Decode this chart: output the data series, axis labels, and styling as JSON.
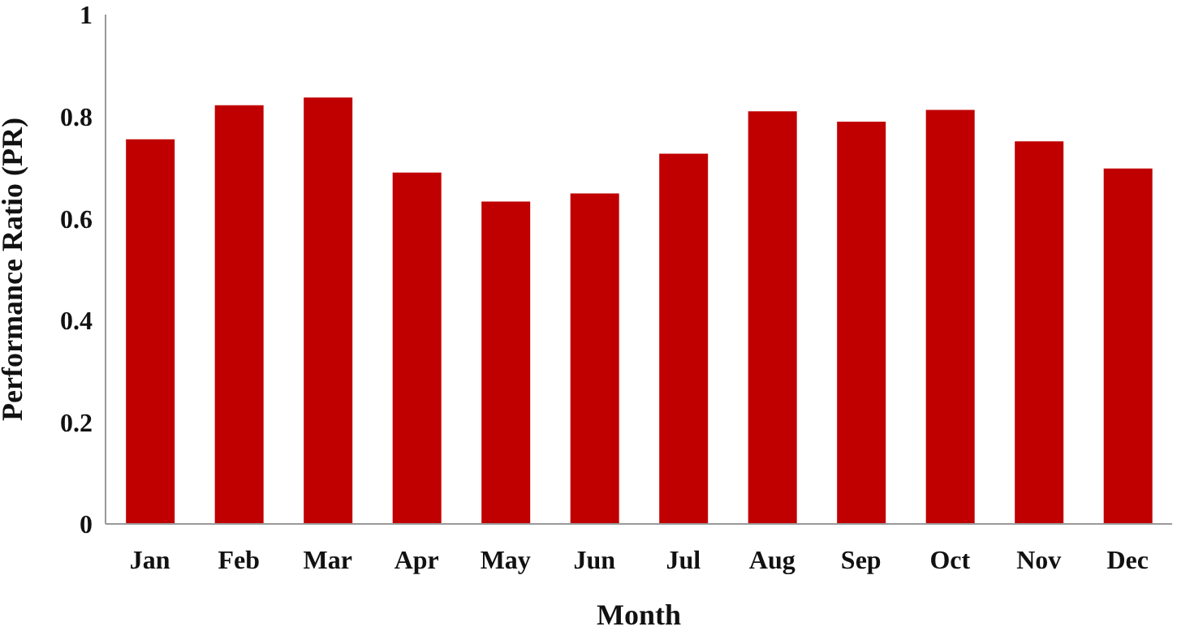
{
  "chart_data": {
    "type": "bar",
    "xlabel": "Month",
    "ylabel": "Performance Ratio (PR)",
    "categories": [
      "Jan",
      "Feb",
      "Mar",
      "Apr",
      "May",
      "Jun",
      "Jul",
      "Aug",
      "Sep",
      "Oct",
      "Nov",
      "Dec"
    ],
    "values": [
      0.755,
      0.822,
      0.837,
      0.69,
      0.633,
      0.649,
      0.727,
      0.81,
      0.79,
      0.813,
      0.751,
      0.698
    ],
    "color": "#c00000",
    "ylim": [
      0,
      1
    ],
    "yticks": [
      0,
      0.2,
      0.4,
      0.6,
      0.8,
      1
    ],
    "grid": false,
    "legend": false
  }
}
